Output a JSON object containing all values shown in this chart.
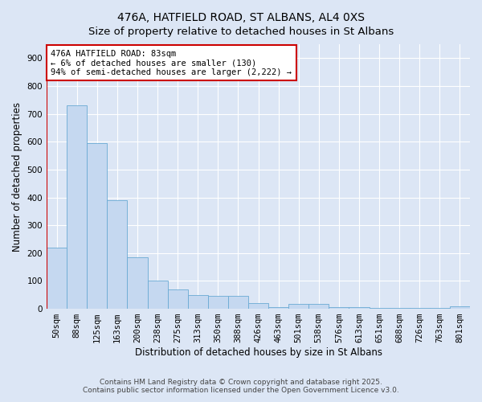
{
  "title_line1": "476A, HATFIELD ROAD, ST ALBANS, AL4 0XS",
  "title_line2": "Size of property relative to detached houses in St Albans",
  "xlabel": "Distribution of detached houses by size in St Albans",
  "ylabel": "Number of detached properties",
  "categories": [
    "50sqm",
    "88sqm",
    "125sqm",
    "163sqm",
    "200sqm",
    "238sqm",
    "275sqm",
    "313sqm",
    "350sqm",
    "388sqm",
    "426sqm",
    "463sqm",
    "501sqm",
    "538sqm",
    "576sqm",
    "613sqm",
    "651sqm",
    "688sqm",
    "726sqm",
    "763sqm",
    "801sqm"
  ],
  "values": [
    220,
    730,
    595,
    390,
    185,
    100,
    70,
    50,
    47,
    47,
    20,
    5,
    18,
    18,
    5,
    5,
    3,
    3,
    2,
    2,
    8
  ],
  "bar_color": "#c5d8f0",
  "bar_edge_color": "#6aaad4",
  "marker_color": "#cc0000",
  "vline_x": -0.5,
  "annotation_text": "476A HATFIELD ROAD: 83sqm\n← 6% of detached houses are smaller (130)\n94% of semi-detached houses are larger (2,222) →",
  "annotation_box_color": "#ffffff",
  "annotation_box_edge_color": "#cc0000",
  "ylim": [
    0,
    950
  ],
  "yticks": [
    0,
    100,
    200,
    300,
    400,
    500,
    600,
    700,
    800,
    900
  ],
  "bg_color": "#dce6f5",
  "plot_bg_color": "#dce6f5",
  "grid_color": "#ffffff",
  "footer_line1": "Contains HM Land Registry data © Crown copyright and database right 2025.",
  "footer_line2": "Contains public sector information licensed under the Open Government Licence v3.0.",
  "title_fontsize": 10,
  "axis_label_fontsize": 8.5,
  "tick_fontsize": 7.5,
  "annotation_fontsize": 7.5,
  "footer_fontsize": 6.5
}
